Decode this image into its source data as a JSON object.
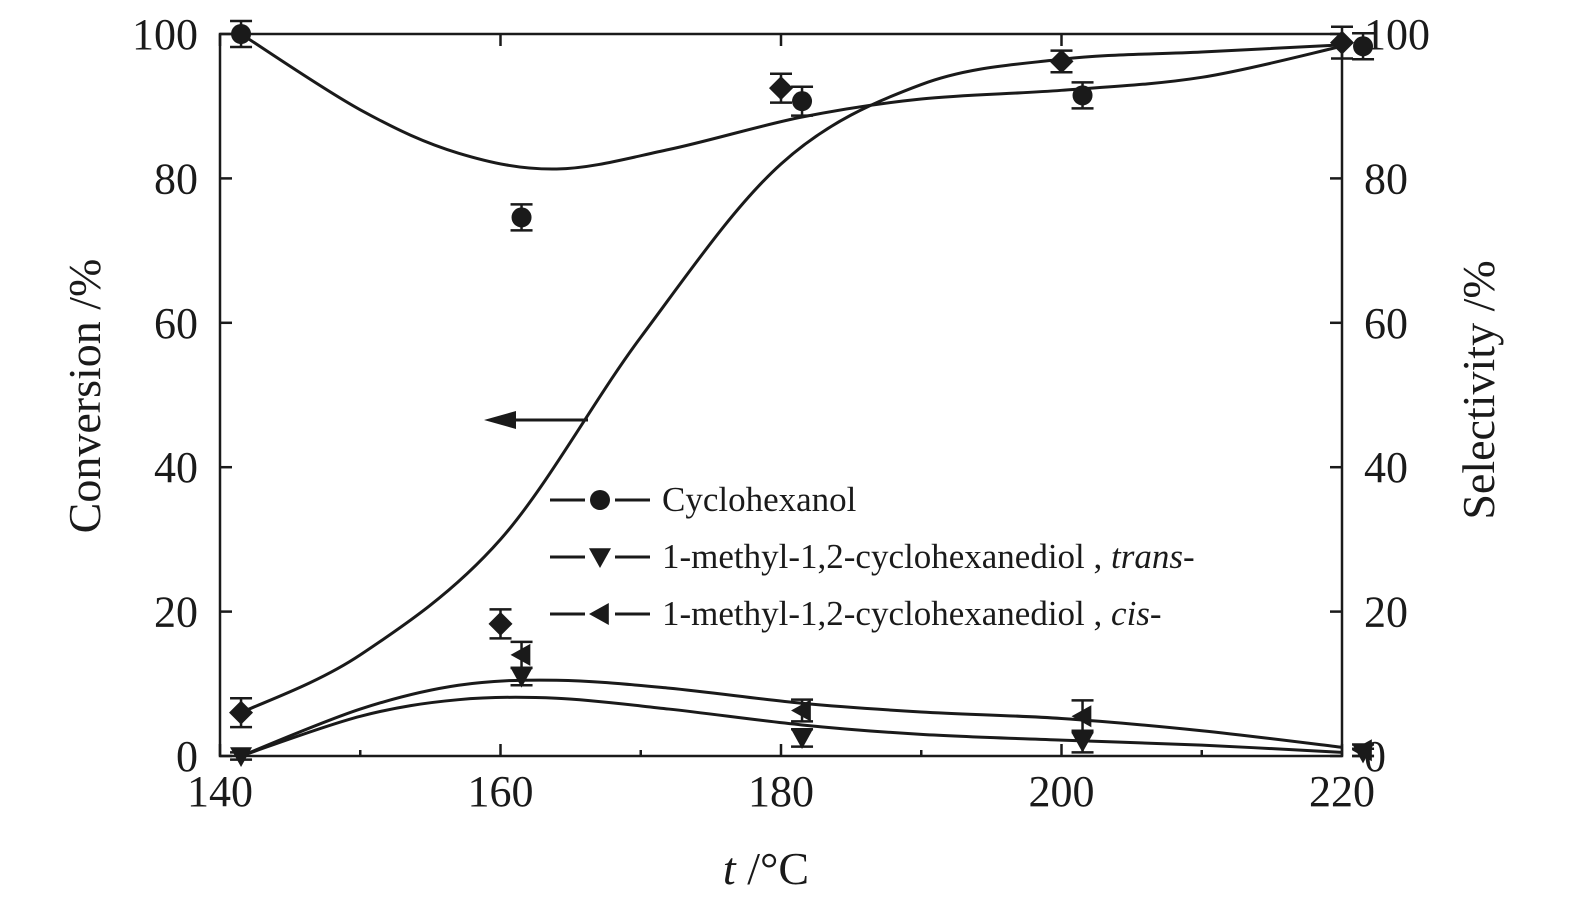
{
  "chart_data": {
    "type": "scatter",
    "title": "",
    "xlabel_italic": "t",
    "xlabel_unit": " /°C",
    "ylabel_left": "Conversion /%",
    "ylabel_right": "Selectivity /%",
    "xlim": [
      140,
      220
    ],
    "ylim_left": [
      0,
      100
    ],
    "ylim_right": [
      0,
      100
    ],
    "xticks": [
      140,
      160,
      180,
      200,
      220
    ],
    "yticks_left": [
      0,
      20,
      40,
      60,
      80,
      100
    ],
    "yticks_right": [
      0,
      20,
      40,
      60,
      80,
      100
    ],
    "grid": false,
    "legend_position": "center",
    "legend": [
      {
        "marker": "circle",
        "text": "Cyclohexanol",
        "suffix": ""
      },
      {
        "marker": "triangle-down",
        "text": "1-methyl-1,2-cyclohexanediol , ",
        "suffix": "trans-"
      },
      {
        "marker": "triangle-left",
        "text": "1-methyl-1,2-cyclohexanediol , ",
        "suffix": "cis-"
      }
    ],
    "annotation": {
      "arrow_direction": "left",
      "points_to_axis": "left"
    },
    "series": [
      {
        "legend_index": null,
        "axis": "left",
        "marker": "diamond",
        "x": [
          141.5,
          160,
          180,
          200,
          220
        ],
        "y": [
          6,
          18.3,
          92.5,
          96.2,
          98.8
        ],
        "err": [
          2,
          2,
          2,
          1.5,
          2.2
        ],
        "fit_x": [
          141.5,
          150,
          160,
          170,
          180,
          190,
          200,
          210,
          220
        ],
        "fit_y": [
          6,
          14,
          30,
          58,
          82,
          93,
          96.5,
          97.5,
          98.5
        ]
      },
      {
        "legend_index": 0,
        "axis": "right",
        "marker": "circle",
        "x": [
          141.5,
          161.5,
          181.5,
          201.5,
          221.5
        ],
        "y": [
          100,
          74.6,
          90.7,
          91.5,
          98.3
        ],
        "err": [
          1.8,
          1.8,
          2,
          1.8,
          1.8
        ],
        "fit_x": [
          141.5,
          150,
          157,
          164,
          172,
          181.5,
          190,
          200,
          210,
          220
        ],
        "fit_y": [
          100,
          89.5,
          83.5,
          81.3,
          84,
          88.5,
          91,
          92.2,
          94,
          98.3
        ]
      },
      {
        "legend_index": 1,
        "axis": "right",
        "marker": "triangle-down",
        "x": [
          141.5,
          161.5,
          181.5,
          201.5,
          221.5
        ],
        "y": [
          0,
          11,
          2.5,
          2,
          0.5
        ],
        "err": [
          0.5,
          1.2,
          1.2,
          1.5,
          0.5
        ],
        "fit_x": [
          141.5,
          150,
          157,
          164,
          172,
          181.5,
          190,
          200,
          210,
          220
        ],
        "fit_y": [
          0,
          5.5,
          7.8,
          8,
          6.5,
          4.3,
          3,
          2.2,
          1.5,
          0.5
        ]
      },
      {
        "legend_index": 2,
        "axis": "right",
        "marker": "triangle-left",
        "x": [
          161.5,
          181.5,
          201.5,
          221.5
        ],
        "y": [
          14,
          6.3,
          5.5,
          0.8
        ],
        "err": [
          1.8,
          1.5,
          2.2,
          0.8
        ],
        "fit_x": [
          141.5,
          150,
          157,
          164,
          172,
          181.5,
          190,
          200,
          210,
          220
        ],
        "fit_y": [
          0,
          6.5,
          9.8,
          10.5,
          9.4,
          7.3,
          6.1,
          5.2,
          3.5,
          1.2
        ]
      }
    ]
  }
}
